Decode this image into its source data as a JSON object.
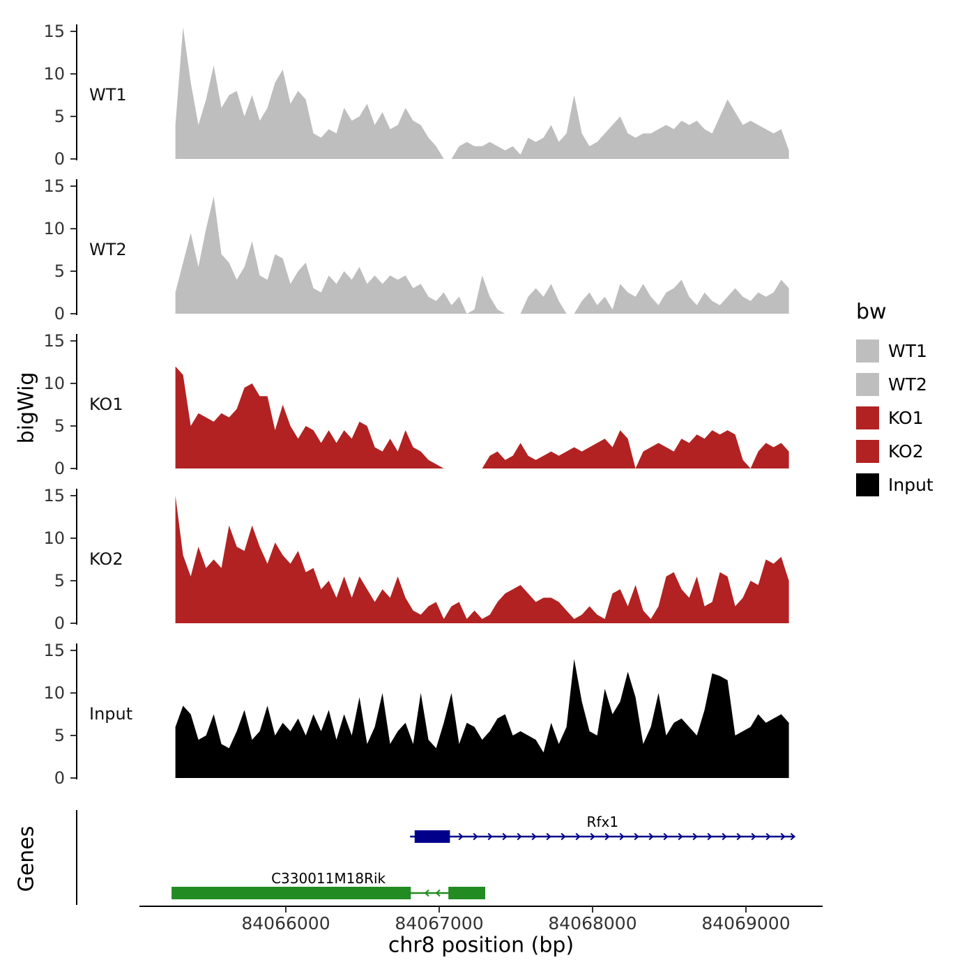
{
  "figure": {
    "y_axis_title": "bigWig",
    "genes_axis_title": "Genes",
    "x_axis_title": "chr8 position (bp)"
  },
  "legend": {
    "title": "bw",
    "entries": [
      {
        "label": "WT1",
        "color": "#BEBEBE"
      },
      {
        "label": "WT2",
        "color": "#BEBEBE"
      },
      {
        "label": "KO1",
        "color": "#B22222"
      },
      {
        "label": "KO2",
        "color": "#B22222"
      },
      {
        "label": "Input",
        "color": "#000000"
      }
    ]
  },
  "chart_data": {
    "type": "area",
    "title": "",
    "xlabel": "chr8 position (bp)",
    "ylabel": "bigWig",
    "chromosome": "chr8",
    "x_start": 84065280,
    "x_step": 50,
    "x_end": 84069280,
    "xlim": [
      84065050,
      84069500
    ],
    "ylim_per_track": [
      0,
      15
    ],
    "y_ticks": [
      0,
      5,
      10,
      15
    ],
    "x_ticks": [
      84066000,
      84067000,
      84068000,
      84069000
    ],
    "x_tick_labels": [
      "84066000",
      "84067000",
      "84068000",
      "84069000"
    ],
    "grid": false,
    "legend_position": "right",
    "tracks": [
      {
        "name": "WT1",
        "color": "#BEBEBE",
        "values": [
          4,
          15.5,
          9,
          4,
          7,
          11,
          6,
          7.5,
          8,
          5,
          7.5,
          4.5,
          6,
          9,
          10.5,
          6.5,
          8,
          7,
          3,
          2.5,
          3.5,
          3,
          6,
          4.5,
          5,
          6.5,
          4,
          5.5,
          3.5,
          4,
          6,
          4.5,
          4,
          2.5,
          1.5,
          0,
          0,
          1.5,
          2,
          1.5,
          1.5,
          2,
          1.5,
          1,
          1.5,
          0.5,
          2.5,
          2,
          2.5,
          4,
          2,
          3,
          7.5,
          3,
          1.5,
          2,
          3,
          4,
          5,
          3,
          2.5,
          3,
          3,
          3.5,
          4,
          3.5,
          4.5,
          4,
          4.5,
          3.5,
          3,
          5,
          7,
          5.5,
          4,
          4.5,
          4,
          3.5,
          3,
          3.5,
          1
        ]
      },
      {
        "name": "WT2",
        "color": "#BEBEBE",
        "values": [
          2.5,
          6,
          9.5,
          5.5,
          10,
          13.8,
          7,
          6,
          4,
          5.5,
          8.5,
          4.5,
          4,
          7,
          6.5,
          3.5,
          5,
          6,
          3,
          2.5,
          4.5,
          3.5,
          5,
          4,
          5.5,
          3.5,
          4.5,
          3.5,
          4.5,
          4,
          4.5,
          3,
          3.5,
          2,
          1.5,
          2.5,
          1,
          2,
          0,
          0.5,
          4.5,
          2,
          0.5,
          0,
          0,
          0,
          2,
          3,
          2,
          3.5,
          1.5,
          0,
          0,
          1.5,
          2.5,
          1,
          2,
          0.5,
          3.5,
          2.5,
          2,
          3.5,
          2,
          1,
          2.5,
          3,
          4,
          2,
          1,
          2.5,
          1.5,
          1,
          2,
          3,
          2,
          1.5,
          2.5,
          2,
          2.5,
          4,
          3
        ]
      },
      {
        "name": "KO1",
        "color": "#B22222",
        "values": [
          12,
          11,
          5,
          6.5,
          6,
          5.5,
          6.5,
          6,
          7,
          9.5,
          10,
          8.5,
          8.5,
          4.5,
          7.5,
          5,
          3.5,
          5,
          4.5,
          3,
          4.5,
          3,
          4.5,
          3.5,
          5.5,
          5,
          2.5,
          2,
          3.5,
          2,
          4.5,
          2.5,
          2,
          1,
          0.5,
          0,
          0,
          0,
          0,
          0,
          0,
          1.5,
          2,
          1,
          1.5,
          3,
          1.5,
          1,
          1.5,
          2,
          1.5,
          2,
          2.5,
          2,
          2.5,
          3,
          3.5,
          2.5,
          4.5,
          3.5,
          0,
          2,
          2.5,
          3,
          2.5,
          2,
          3.5,
          3,
          4,
          3.5,
          4.5,
          4,
          4.5,
          4,
          1,
          0,
          2,
          3,
          2.5,
          3,
          2
        ]
      },
      {
        "name": "KO2",
        "color": "#B22222",
        "values": [
          15,
          8,
          5.5,
          9,
          6.5,
          7.5,
          6.5,
          11.5,
          9,
          8.5,
          11.5,
          9,
          7,
          9.5,
          8,
          7,
          8.5,
          6,
          6.5,
          4,
          5,
          3,
          5.5,
          3,
          5.5,
          4,
          2.5,
          4,
          3,
          5.5,
          3,
          1.5,
          1,
          2,
          2.5,
          0.5,
          2,
          2.5,
          0.5,
          1.5,
          0.5,
          1,
          2.5,
          3.5,
          4,
          4.5,
          3.5,
          2.5,
          3,
          3,
          2.5,
          1.5,
          0.5,
          1,
          2,
          1,
          0.5,
          3.5,
          4,
          2,
          4.5,
          1.5,
          0.5,
          2,
          5.5,
          6,
          4,
          3,
          5.5,
          2,
          2.5,
          6,
          5.5,
          2,
          3,
          5,
          4.5,
          7.5,
          7,
          7.8,
          5
        ]
      },
      {
        "name": "Input",
        "color": "#000000",
        "values": [
          6,
          8.5,
          7.5,
          4.5,
          5,
          7.5,
          4,
          3.5,
          5.5,
          8,
          4.5,
          5.5,
          8.5,
          5,
          6.5,
          5.5,
          7,
          5,
          7.5,
          5.5,
          8,
          4.5,
          7.5,
          5,
          9.5,
          4,
          6,
          10,
          4,
          5.5,
          6.5,
          4,
          10,
          4.5,
          3.5,
          6.5,
          10,
          4,
          6.5,
          6,
          4.5,
          5.5,
          7,
          7.5,
          5,
          5.5,
          5,
          4.5,
          3,
          6.5,
          4,
          6,
          14,
          9,
          5.5,
          5,
          10.5,
          7.5,
          9,
          12.5,
          9.5,
          4,
          6,
          10,
          5,
          6.5,
          7,
          6,
          5,
          8,
          12.3,
          12,
          11.5,
          5,
          5.5,
          6,
          7.5,
          6.5,
          7,
          7.5,
          6.5
        ]
      }
    ],
    "genes": [
      {
        "name": "Rfx1",
        "color": "#00008B",
        "strand": "+",
        "start": 84066810,
        "end": 84069320,
        "exons": [
          [
            84066840,
            84067070
          ]
        ]
      },
      {
        "name": "C330011M18Rik",
        "color": "#228B22",
        "strand": "-",
        "start": 84065255,
        "end": 84067300,
        "exons": [
          [
            84065255,
            84066815
          ],
          [
            84067060,
            84067300
          ]
        ]
      }
    ]
  }
}
